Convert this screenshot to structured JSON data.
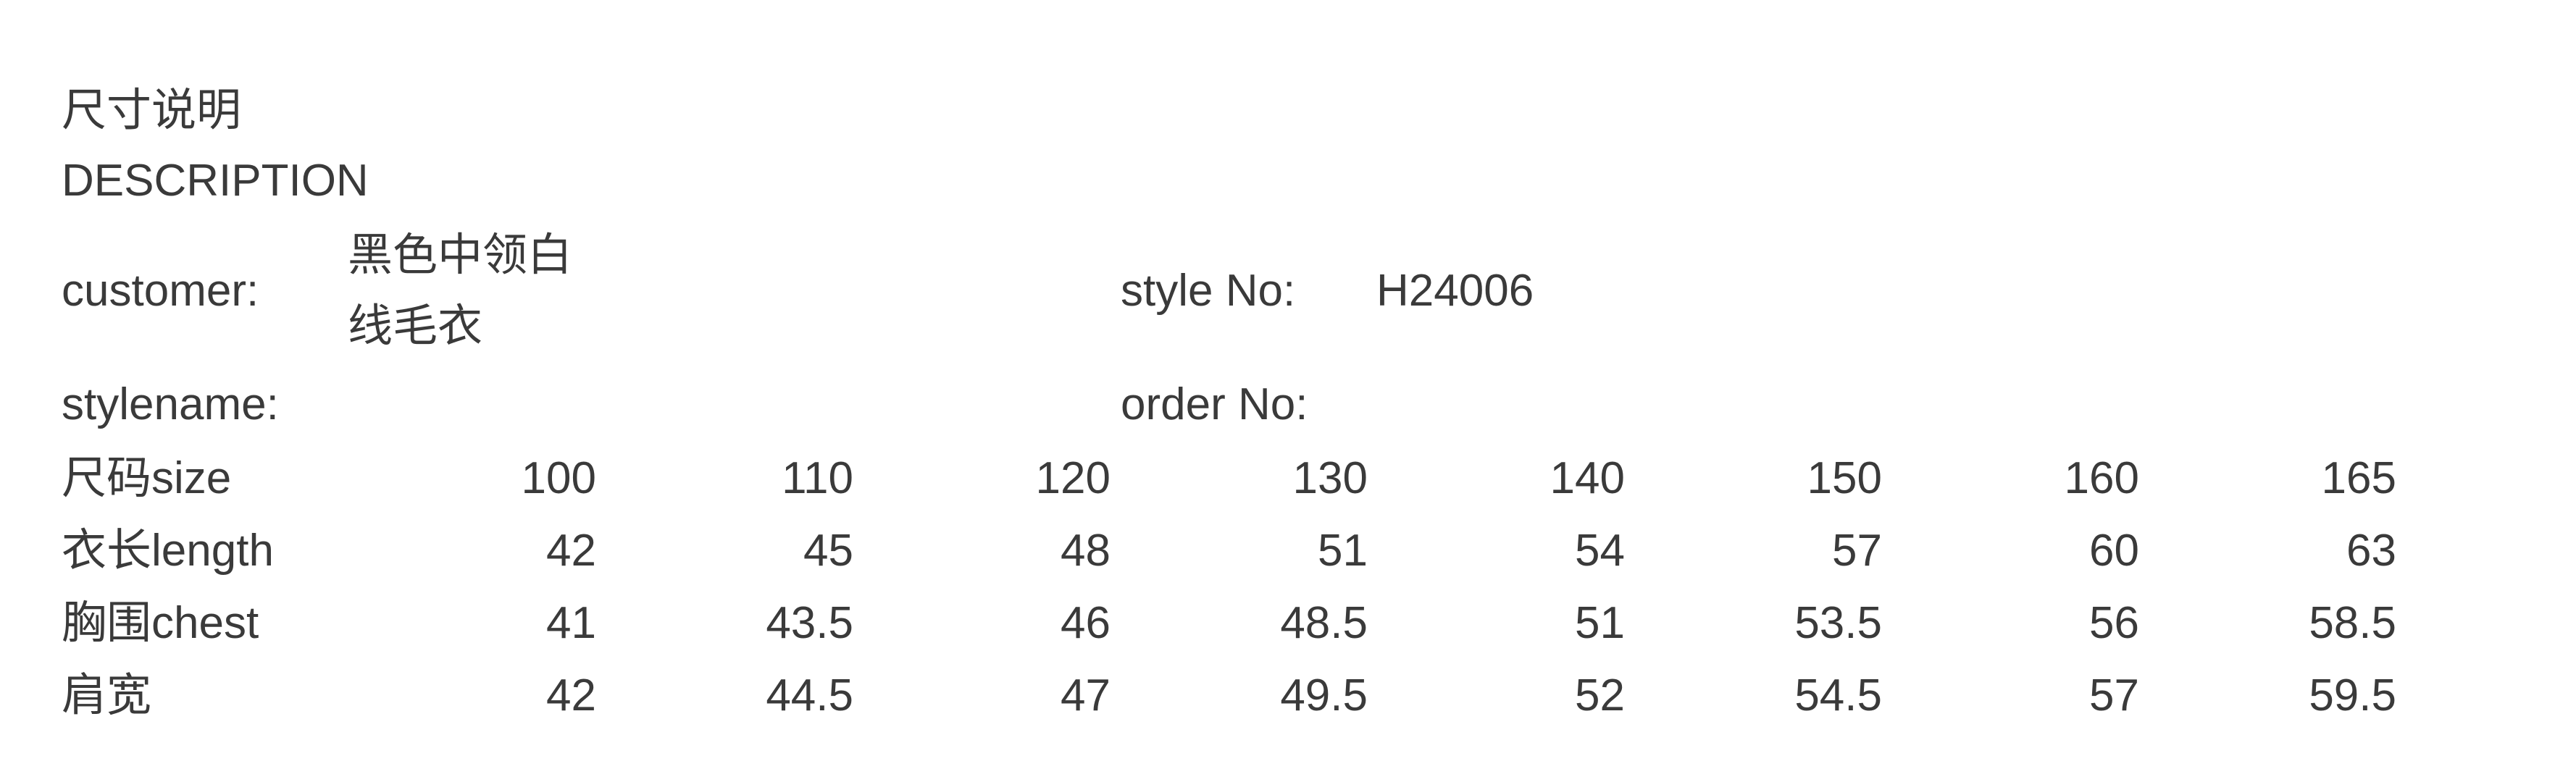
{
  "page": {
    "background_color": "#ffffff",
    "text_color": "#3a3a3a"
  },
  "header": {
    "title_cn": "尺寸说明",
    "title_en": "DESCRIPTION"
  },
  "info": {
    "customer_label": "customer:",
    "customer_value": "黑色中领白线毛衣",
    "style_no_label": "style No:",
    "style_no_value": "H24006",
    "stylename_label": "stylename:",
    "order_no_label": "order No:"
  },
  "size_table": {
    "rows": [
      {
        "label": "尺码size",
        "values": [
          "100",
          "110",
          "120",
          "130",
          "140",
          "150",
          "160",
          "165"
        ]
      },
      {
        "label": "衣长length",
        "values": [
          "42",
          "45",
          "48",
          "51",
          "54",
          "57",
          "60",
          "63"
        ]
      },
      {
        "label": "胸围chest",
        "values": [
          "41",
          "43.5",
          "46",
          "48.5",
          "51",
          "53.5",
          "56",
          "58.5"
        ]
      },
      {
        "label": "肩宽",
        "values": [
          "42",
          "44.5",
          "47",
          "49.5",
          "52",
          "54.5",
          "57",
          "59.5"
        ]
      }
    ]
  }
}
